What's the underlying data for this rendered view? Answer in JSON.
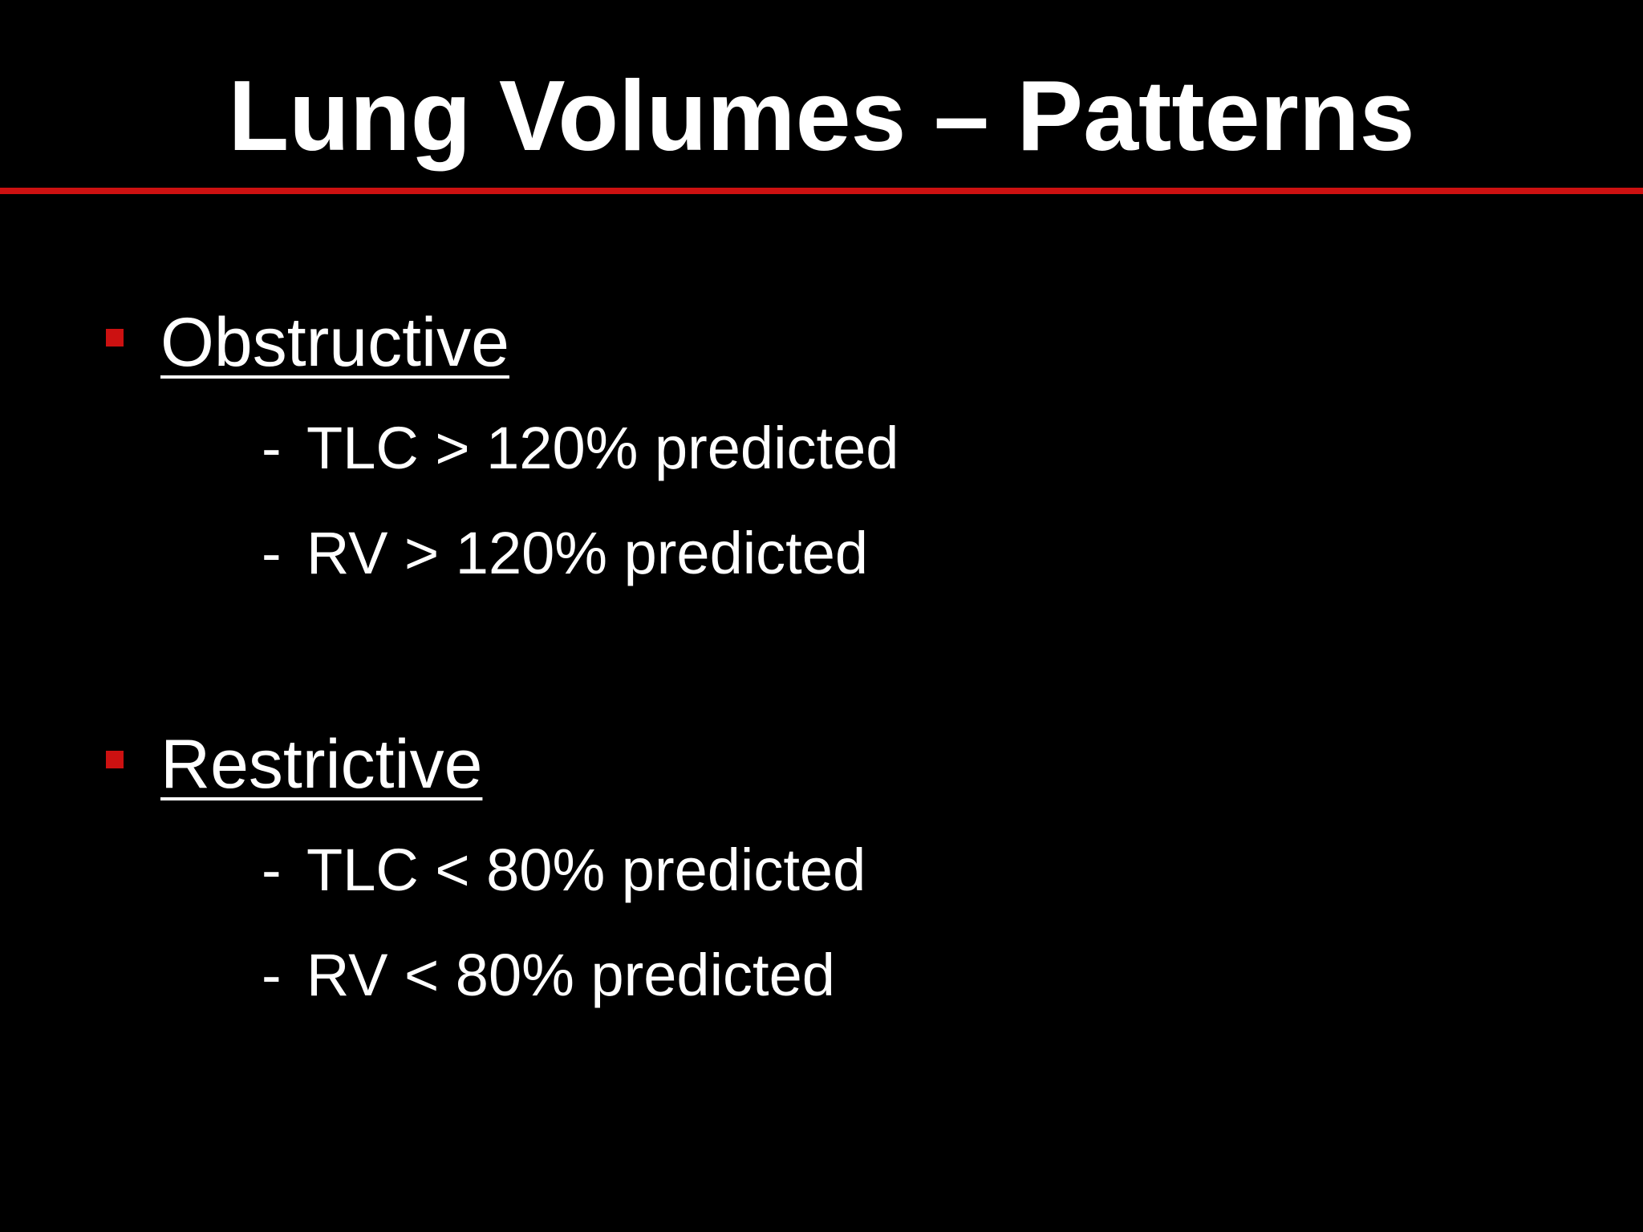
{
  "slide": {
    "title": "Lung Volumes – Patterns",
    "accent_color": "#cc1111",
    "background_color": "#000000",
    "sections": [
      {
        "heading": "Obstructive",
        "items": [
          "TLC > 120% predicted",
          "RV > 120% predicted"
        ]
      },
      {
        "heading": "Restrictive",
        "items": [
          "TLC < 80% predicted",
          "RV < 80% predicted"
        ]
      }
    ],
    "sub_marker": "-"
  }
}
